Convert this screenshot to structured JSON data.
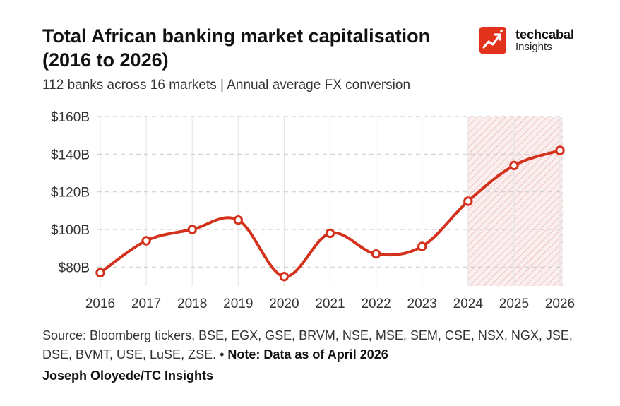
{
  "header": {
    "title": "Total African banking market capitalisation (2016 to 2026)",
    "subtitle": "112 banks across 16 markets | Annual average FX conversion"
  },
  "brand": {
    "name": "techcabal",
    "sub": "Insights",
    "color": "#e2321b",
    "icon": "trend-arrow-icon"
  },
  "chart_data": {
    "type": "line",
    "x": [
      "2016",
      "2017",
      "2018",
      "2019",
      "2020",
      "2021",
      "2022",
      "2023",
      "2024",
      "2025",
      "2026"
    ],
    "series": [
      {
        "values": [
          77,
          94,
          100,
          105,
          75,
          98,
          87,
          91,
          115,
          134,
          142
        ]
      }
    ],
    "ylim": [
      70,
      160
    ],
    "yticks": [
      80,
      100,
      120,
      140,
      160
    ],
    "ytick_labels": [
      "$80B",
      "$100B",
      "$120B",
      "$140B",
      "$160B"
    ],
    "shaded_region": {
      "from": "2024",
      "to": "2026"
    },
    "grid": true,
    "line_color": "#d4311c",
    "title": "",
    "xlabel": "",
    "ylabel": ""
  },
  "footer": {
    "source": "Source: Bloomberg tickers, BSE, EGX, GSE, BRVM, NSE, MSE, SEM, CSE, NSX, NGX, JSE, DSE, BVMT, USE, LuSE, ZSE.",
    "separator": " • ",
    "note": "Note: Data as of April 2026",
    "credit": "Joseph Oloyede/TC Insights"
  }
}
